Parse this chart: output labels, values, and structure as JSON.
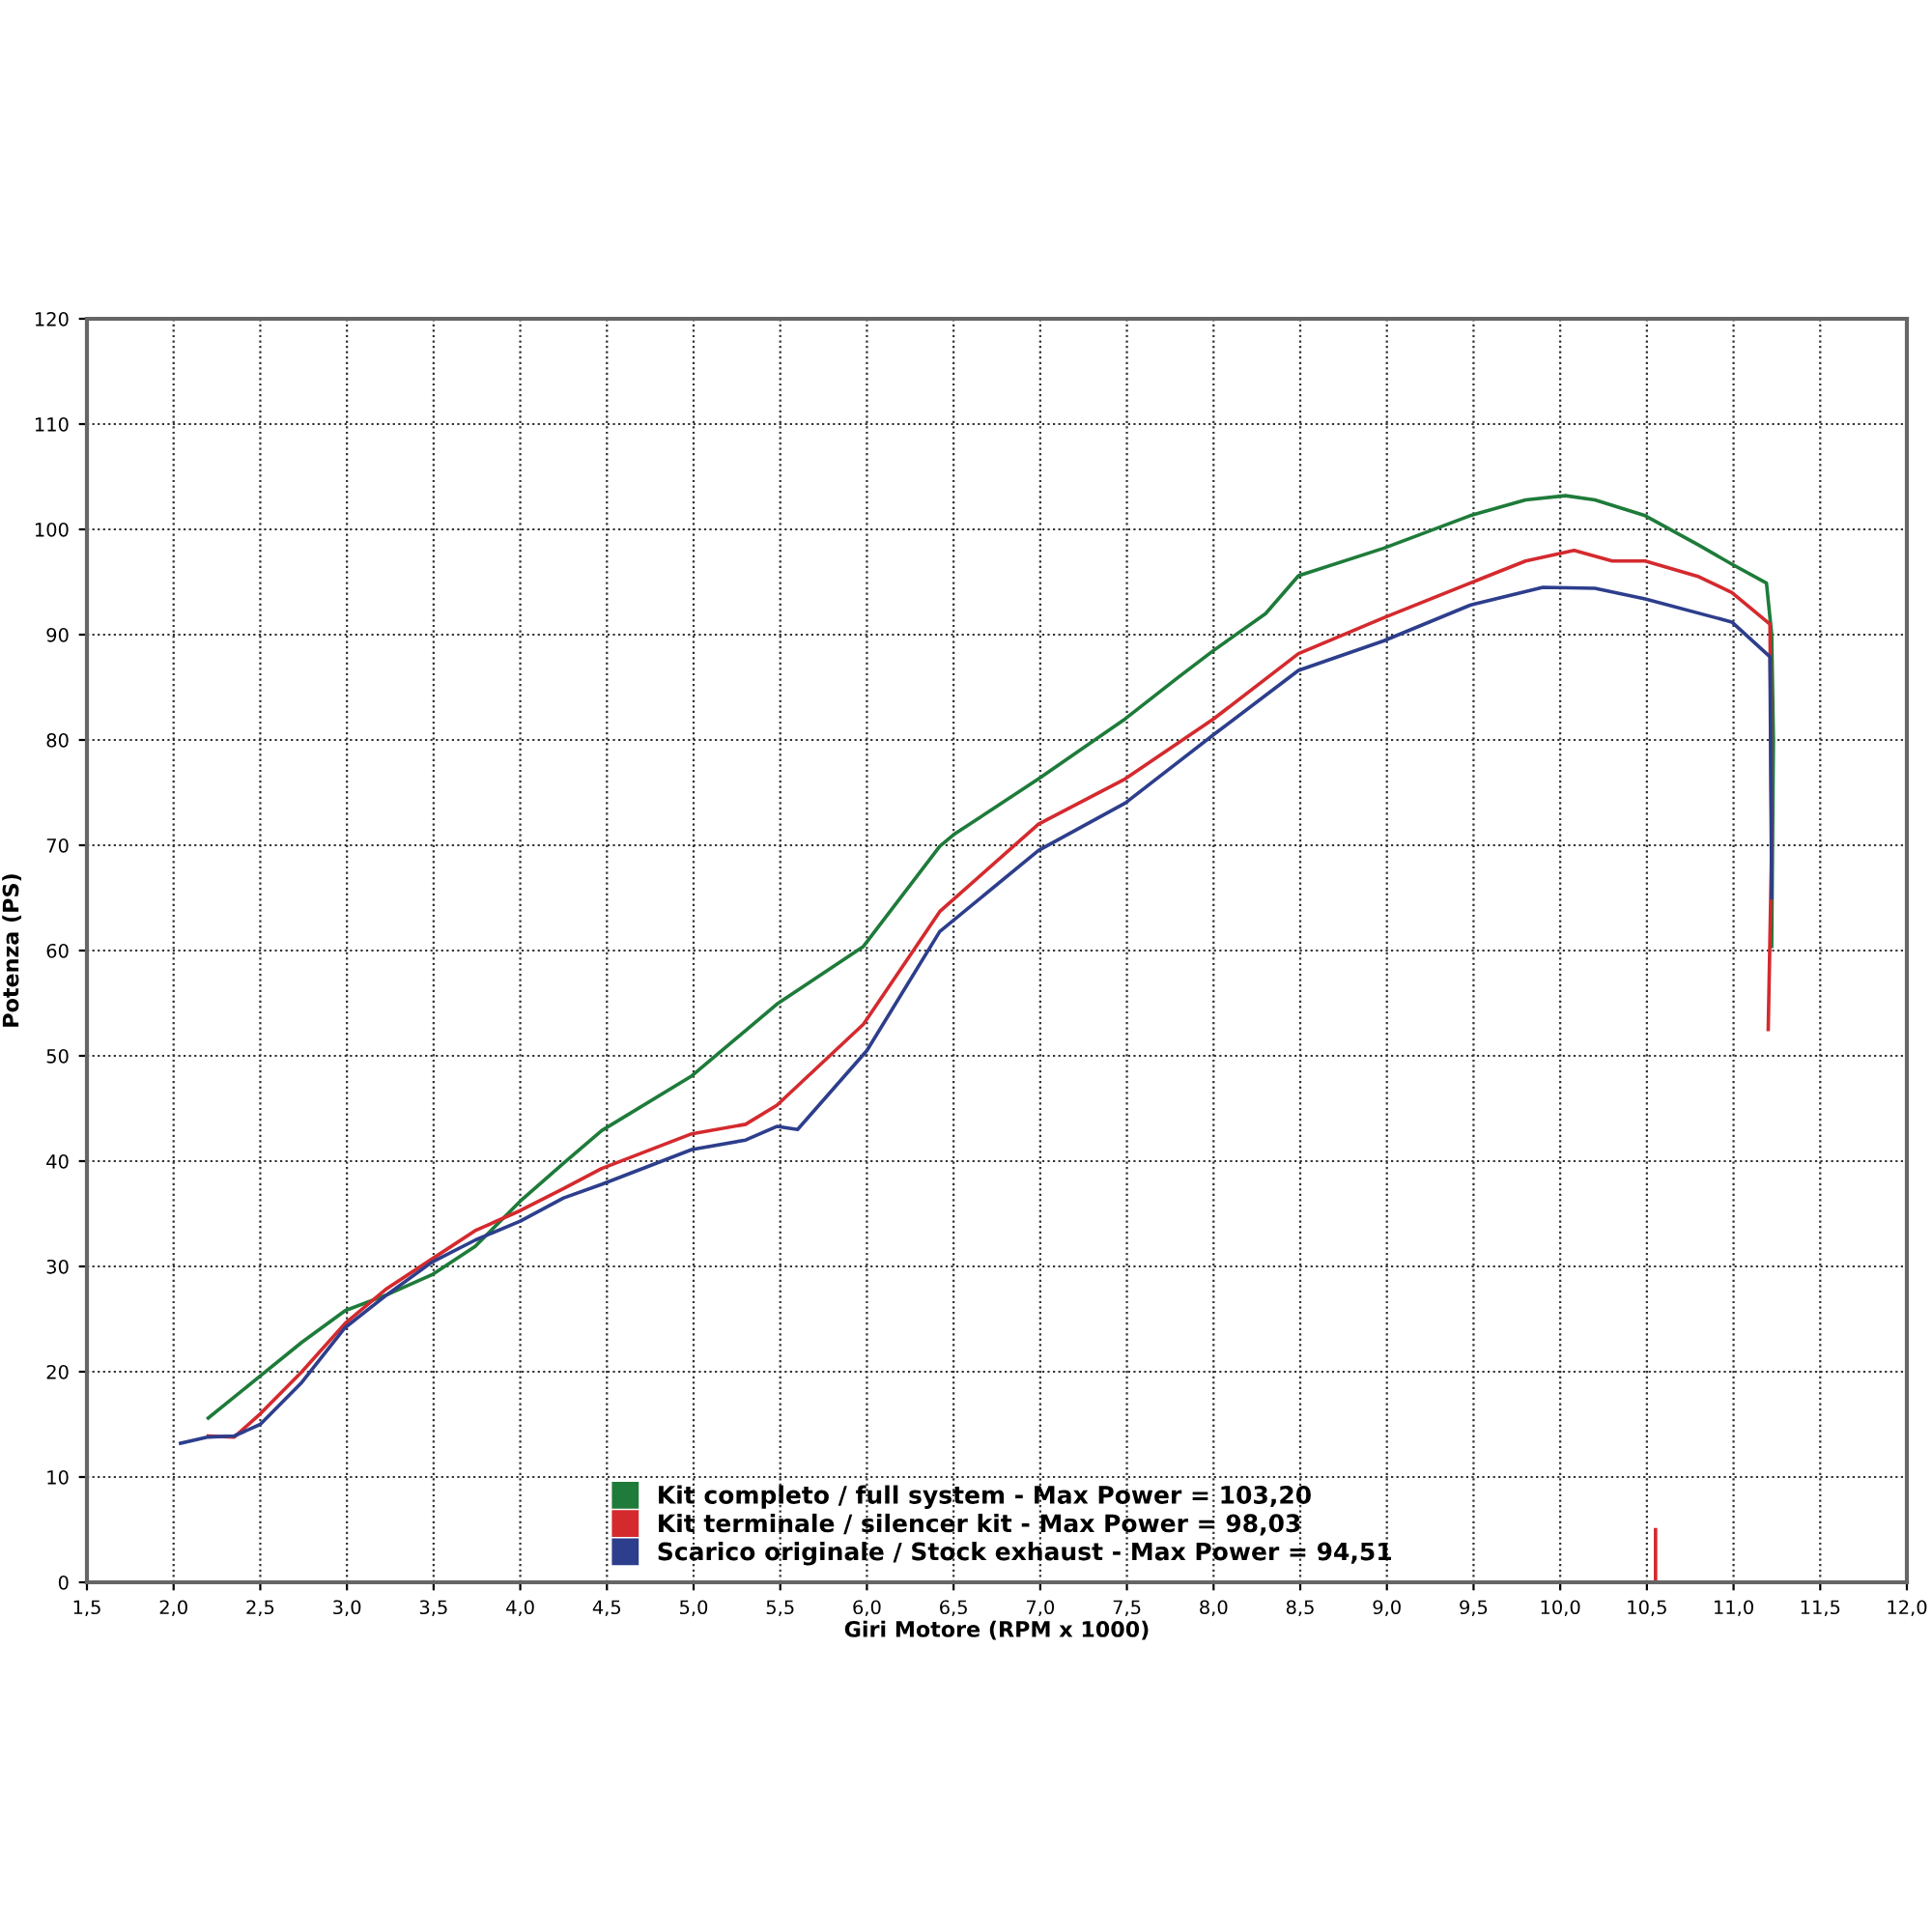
{
  "chart_data": {
    "type": "line",
    "xlabel": "Giri Motore (RPM x 1000)",
    "ylabel": "Potenza (PS)",
    "xlim": [
      1.5,
      12.0
    ],
    "xticks": [
      {
        "value": 1.5,
        "label": "1,5"
      },
      {
        "value": 2.0,
        "label": "2,0"
      },
      {
        "value": 2.5,
        "label": "2,5"
      },
      {
        "value": 3.0,
        "label": "3,0"
      },
      {
        "value": 3.5,
        "label": "3,5"
      },
      {
        "value": 4.0,
        "label": "4,0"
      },
      {
        "value": 4.5,
        "label": "4,5"
      },
      {
        "value": 5.0,
        "label": "5,0"
      },
      {
        "value": 5.5,
        "label": "5,5"
      },
      {
        "value": 6.0,
        "label": "6,0"
      },
      {
        "value": 6.5,
        "label": "6,5"
      },
      {
        "value": 7.0,
        "label": "7,0"
      },
      {
        "value": 7.5,
        "label": "7,5"
      },
      {
        "value": 8.0,
        "label": "8,0"
      },
      {
        "value": 8.5,
        "label": "8,5"
      },
      {
        "value": 9.0,
        "label": "9,0"
      },
      {
        "value": 9.5,
        "label": "9,5"
      },
      {
        "value": 10.0,
        "label": "10,0"
      },
      {
        "value": 10.5,
        "label": "10,5"
      },
      {
        "value": 11.0,
        "label": "11,0"
      },
      {
        "value": 11.5,
        "label": "11,5"
      },
      {
        "value": 12.0,
        "label": "12,0"
      }
    ],
    "ylim": [
      0,
      120
    ],
    "yticks": [
      0,
      10,
      20,
      30,
      40,
      50,
      60,
      70,
      80,
      90,
      100,
      110,
      120
    ],
    "grid": true,
    "legend": "bottom",
    "line_style": "solid",
    "marker": "none",
    "series": [
      {
        "name": "Kit completo / full system - Max Power = 103,20",
        "color": "#1e7b3a",
        "x": [
          2.2,
          2.5,
          2.74,
          2.99,
          3.23,
          3.49,
          3.74,
          4.0,
          4.25,
          4.47,
          4.99,
          5.48,
          5.98,
          6.42,
          6.5,
          6.99,
          7.49,
          7.8,
          8.0,
          8.3,
          8.49,
          8.98,
          9.48,
          9.8,
          10.03,
          10.2,
          10.49,
          10.8,
          10.99,
          11.19,
          11.22,
          11.23,
          11.22
        ],
        "values": [
          15.6,
          19.6,
          22.8,
          25.8,
          27.3,
          29.2,
          31.9,
          36.2,
          39.8,
          42.9,
          48.1,
          54.9,
          60.4,
          69.9,
          71,
          76.3,
          82,
          86,
          88.5,
          92,
          95.6,
          98.2,
          101.3,
          102.8,
          103.2,
          102.8,
          101.3,
          98.5,
          96.7,
          94.9,
          90,
          80,
          60.4
        ]
      },
      {
        "name": "Kit terminale / silencer kit - Max Power = 98,03",
        "color": "#d42a2e",
        "x": [
          2.2,
          2.35,
          2.5,
          2.74,
          2.99,
          3.23,
          3.49,
          3.74,
          4.0,
          4.25,
          4.47,
          4.99,
          5.3,
          5.48,
          5.98,
          6.42,
          6.99,
          7.49,
          8.0,
          8.49,
          8.98,
          9.48,
          9.8,
          10.08,
          10.3,
          10.49,
          10.8,
          10.99,
          11.21,
          11.22,
          11.2,
          null,
          10.55,
          10.55
        ],
        "values": [
          13.9,
          13.8,
          16,
          20,
          24.6,
          27.9,
          30.7,
          33.4,
          35.3,
          37.4,
          39.3,
          42.6,
          43.5,
          45.3,
          53,
          63.7,
          72,
          76.3,
          82,
          88.2,
          91.6,
          94.9,
          97,
          98,
          97,
          97,
          95.5,
          94,
          91,
          70,
          52.5,
          null,
          0,
          5
        ]
      },
      {
        "name": "Scarico originale / Stock exhaust - Max Power = 94,51",
        "color": "#2d3e8c",
        "x": [
          2.04,
          2.2,
          2.35,
          2.5,
          2.74,
          2.99,
          3.23,
          3.49,
          3.74,
          4.0,
          4.25,
          4.47,
          4.99,
          5.3,
          5.48,
          5.6,
          6.0,
          6.42,
          6.99,
          7.49,
          8.0,
          8.49,
          8.98,
          9.48,
          9.9,
          10.2,
          10.49,
          10.99,
          11.21,
          11.22
        ],
        "values": [
          13.2,
          13.8,
          13.9,
          15,
          19,
          24.2,
          27.3,
          30.4,
          32.5,
          34.3,
          36.5,
          37.8,
          41.1,
          42,
          43.3,
          43,
          50.5,
          61.8,
          69.5,
          74,
          80.5,
          86.6,
          89.4,
          92.8,
          94.5,
          94.4,
          93.4,
          91.2,
          87.9,
          65
        ]
      }
    ]
  }
}
